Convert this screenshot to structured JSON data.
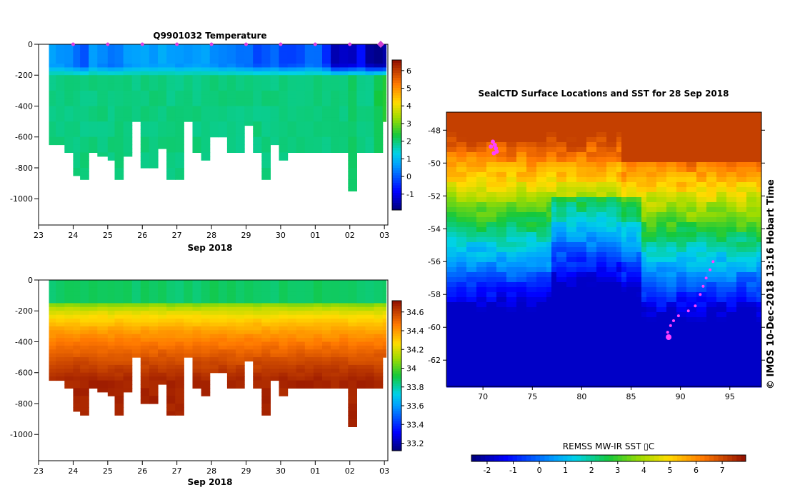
{
  "chart_data": [
    {
      "type": "heatmap",
      "id": "temp",
      "title": "Q9901032  Temperature",
      "xlabel": "Sep 2018",
      "x_ticks": [
        "23",
        "24",
        "25",
        "26",
        "27",
        "28",
        "29",
        "30",
        "01",
        "02",
        "03"
      ],
      "y_ticks": [
        "0",
        "-200",
        "-400",
        "-600",
        "-800",
        "-1000"
      ],
      "ylim": [
        -1170,
        0
      ],
      "colorbar": {
        "ticks": [
          "-1",
          "0",
          "1",
          "2",
          "3",
          "4",
          "5",
          "6"
        ],
        "range": [
          -1.9,
          6.6
        ]
      },
      "profile_days": [
        23.3,
        23.5,
        23.75,
        24.0,
        24.2,
        24.45,
        24.7,
        25.0,
        25.2,
        25.45,
        25.7,
        25.95,
        26.2,
        26.45,
        26.7,
        26.95,
        27.2,
        27.45,
        27.7,
        27.95,
        28.2,
        28.45,
        28.7,
        28.95,
        29.2,
        29.45,
        29.7,
        29.95,
        30.2,
        30.45,
        30.7,
        30.95,
        31.2,
        31.45,
        31.7,
        31.95,
        32.2,
        32.45,
        32.7,
        32.95
      ],
      "max_depth": [
        650,
        650,
        700,
        830,
        870,
        700,
        720,
        730,
        860,
        720,
        500,
        800,
        800,
        670,
        860,
        860,
        500,
        690,
        730,
        590,
        600,
        700,
        700,
        510,
        700,
        870,
        650,
        730,
        700,
        700,
        700,
        690,
        690,
        690,
        700,
        930,
        700,
        700,
        700,
        500
      ],
      "surface_temp": [
        0.5,
        0.5,
        0.3,
        0.0,
        -0.3,
        0.5,
        0.2,
        0.0,
        0.1,
        0.4,
        0.5,
        0.6,
        0.5,
        0.6,
        0.6,
        0.4,
        0.5,
        0.6,
        0.5,
        0.4,
        0.2,
        0.3,
        0.1,
        0.0,
        -0.3,
        -0.2,
        0.0,
        -0.4,
        -0.3,
        -0.2,
        0.1,
        0.0,
        -0.5,
        -1.6,
        -1.5,
        -1.4,
        -1.0,
        -1.7,
        -1.9,
        -1.8
      ],
      "deep_temp": [
        2.0,
        2.0,
        2.0,
        2.0,
        2.0,
        2.0,
        2.0,
        2.0,
        2.0,
        2.0,
        2.0,
        2.0,
        2.0,
        2.0,
        2.0,
        2.0,
        2.0,
        2.0,
        2.0,
        2.0,
        2.0,
        2.0,
        2.0,
        2.0,
        2.0,
        2.0,
        2.0,
        2.0,
        2.0,
        2.0,
        2.0,
        2.0,
        2.0,
        2.0,
        2.0,
        2.2,
        2.0,
        2.0,
        2.3,
        2.5
      ]
    },
    {
      "type": "heatmap",
      "id": "sal",
      "title": "",
      "xlabel": "Sep 2018",
      "x_ticks": [
        "23",
        "24",
        "25",
        "26",
        "27",
        "28",
        "29",
        "30",
        "01",
        "02",
        "03"
      ],
      "y_ticks": [
        "0",
        "-200",
        "-400",
        "-600",
        "-800",
        "-1000"
      ],
      "ylim": [
        -1170,
        0
      ],
      "colorbar": {
        "ticks": [
          "33.2",
          "33.4",
          "33.6",
          "33.8",
          "34",
          "34.2",
          "34.4",
          "34.6"
        ],
        "range": [
          33.12,
          34.72
        ]
      },
      "surface_sal": 33.85,
      "deep_sal": 34.66
    },
    {
      "type": "heatmap",
      "id": "map",
      "title": "SealCTD Surface Locations and SST for 28 Sep 2018",
      "x_ticks": [
        "70",
        "75",
        "80",
        "85",
        "90",
        "95"
      ],
      "y_ticks": [
        "-48",
        "-50",
        "-52",
        "-54",
        "-56",
        "-58",
        "-60",
        "-62"
      ],
      "xlim": [
        66.3,
        98.2
      ],
      "ylim": [
        -63.6,
        -46.9
      ],
      "colorbar": {
        "label": "REMSS MW-IR SST ▯C",
        "ticks": [
          "-2",
          "-1",
          "0",
          "1",
          "2",
          "3",
          "4",
          "5",
          "6",
          "7"
        ],
        "range": [
          -2.6,
          7.9
        ]
      },
      "track": [
        [
          93.3,
          -56.0
        ],
        [
          93.0,
          -56.5
        ],
        [
          92.6,
          -57.0
        ],
        [
          92.3,
          -57.5
        ],
        [
          92.0,
          -58.0
        ],
        [
          91.5,
          -58.7
        ],
        [
          90.8,
          -59.0
        ],
        [
          89.8,
          -59.3
        ],
        [
          89.3,
          -59.6
        ],
        [
          89.0,
          -59.9
        ],
        [
          88.7,
          -60.3
        ]
      ],
      "current_position": [
        88.8,
        -60.6
      ],
      "cluster": [
        [
          71.0,
          -48.7
        ],
        [
          71.2,
          -48.9
        ],
        [
          71.3,
          -49.1
        ],
        [
          71.4,
          -49.3
        ],
        [
          71.1,
          -49.4
        ],
        [
          70.8,
          -49.0
        ]
      ]
    }
  ],
  "side_label": "©  IMOS 10-Dec-2018 13:16 Hobart Time"
}
